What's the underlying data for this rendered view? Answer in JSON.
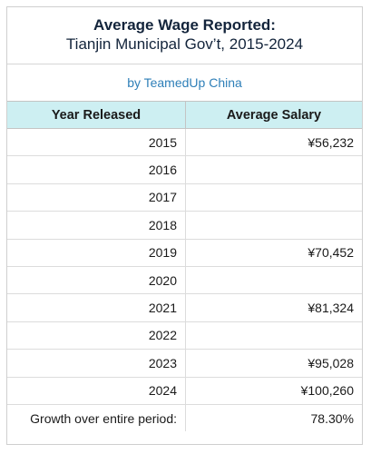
{
  "title": "Average Wage Reported:",
  "subtitle": "Tianjin Municipal Gov’t, 2015-2024",
  "byline": "by TeamedUp China",
  "columns": [
    "Year Released",
    "Average Salary"
  ],
  "rows": [
    {
      "year": "2015",
      "salary": "¥56,232"
    },
    {
      "year": "2016",
      "salary": ""
    },
    {
      "year": "2017",
      "salary": ""
    },
    {
      "year": "2018",
      "salary": ""
    },
    {
      "year": "2019",
      "salary": "¥70,452"
    },
    {
      "year": "2020",
      "salary": ""
    },
    {
      "year": "2021",
      "salary": "¥81,324"
    },
    {
      "year": "2022",
      "salary": ""
    },
    {
      "year": "2023",
      "salary": "¥95,028"
    },
    {
      "year": "2024",
      "salary": "¥100,260"
    }
  ],
  "growth": {
    "label": "Growth over entire period:",
    "value": "78.30%"
  },
  "chart_data": {
    "type": "table",
    "title": "Average Wage Reported:",
    "subtitle": "Tianjin Municipal Gov’t, 2015-2024",
    "columns": [
      "Year Released",
      "Average Salary"
    ],
    "x": [
      2015,
      2016,
      2017,
      2018,
      2019,
      2020,
      2021,
      2022,
      2023,
      2024
    ],
    "values": [
      56232,
      null,
      null,
      null,
      70452,
      null,
      81324,
      null,
      95028,
      100260
    ],
    "summary": {
      "label": "Growth over entire period:",
      "value": "78.30%"
    }
  }
}
